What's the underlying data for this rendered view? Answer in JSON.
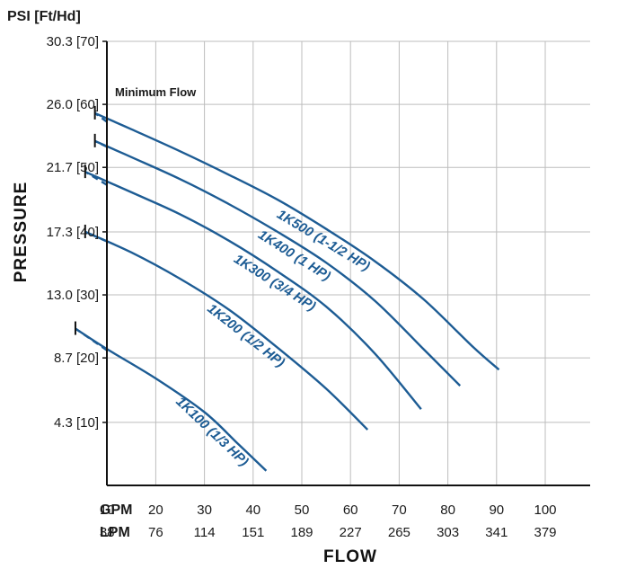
{
  "chart_data": {
    "type": "line",
    "ylabel": "PRESSURE",
    "xlabel": "FLOW",
    "y_unit_label": "PSI [Ft/Hd]",
    "x_row_labels": [
      "GPM",
      "LPM"
    ],
    "xlim": [
      0,
      100
    ],
    "ylim": [
      0,
      30.3
    ],
    "y_ticks": [
      {
        "value": 4.3,
        "label": "4.3 [10]"
      },
      {
        "value": 8.7,
        "label": "8.7 [20]"
      },
      {
        "value": 13.0,
        "label": "13.0 [30]"
      },
      {
        "value": 17.3,
        "label": "17.3 [40]"
      },
      {
        "value": 21.7,
        "label": "21.7 [50]"
      },
      {
        "value": 26.0,
        "label": "26.0 [60]"
      },
      {
        "value": 30.3,
        "label": "30.3 [70]"
      }
    ],
    "x_ticks_gpm": [
      "10",
      "20",
      "30",
      "40",
      "50",
      "60",
      "70",
      "80",
      "90",
      "100"
    ],
    "x_ticks_lpm": [
      "38",
      "76",
      "114",
      "151",
      "189",
      "227",
      "265",
      "303",
      "341",
      "379"
    ],
    "annotation": "Minimum Flow",
    "grid": true,
    "color": "#1d5c94",
    "series": [
      {
        "name": "1K100 (1/3 HP)",
        "x": [
          0,
          3.5,
          10,
          20,
          30,
          37,
          42.7
        ],
        "y": [
          11.5,
          10.7,
          9.3,
          7.3,
          5.0,
          2.8,
          1.0
        ],
        "min_flow": 3.5
      },
      {
        "name": "1K200 (1/2 HP)",
        "x": [
          0,
          5.5,
          15,
          25,
          35,
          45,
          55,
          63.5
        ],
        "y": [
          18.1,
          17.3,
          15.9,
          14.1,
          12.0,
          9.4,
          6.6,
          3.8
        ],
        "min_flow": 5.5
      },
      {
        "name": "1K300 (3/4 HP)",
        "x": [
          0,
          5.5,
          15,
          25,
          35,
          45,
          55,
          65,
          74.5
        ],
        "y": [
          22.5,
          21.4,
          20.0,
          18.5,
          16.7,
          14.6,
          12.2,
          9.0,
          5.2
        ],
        "min_flow": 5.5
      },
      {
        "name": "1K400 (1 HP)",
        "x": [
          0,
          7.5,
          15,
          25,
          35,
          45,
          55,
          65,
          75,
          82.5
        ],
        "y": [
          24.7,
          23.5,
          22.4,
          20.9,
          19.2,
          17.3,
          15.2,
          12.6,
          9.3,
          6.8
        ],
        "min_flow": 7.5
      },
      {
        "name": "1K500 (1-1/2 HP)",
        "x": [
          0,
          7.5,
          15,
          25,
          35,
          45,
          55,
          65,
          75,
          85,
          90.5
        ],
        "y": [
          27.2,
          25.4,
          24.3,
          22.8,
          21.2,
          19.5,
          17.5,
          15.3,
          12.7,
          9.5,
          7.9
        ],
        "min_flow": 7.5
      }
    ]
  }
}
